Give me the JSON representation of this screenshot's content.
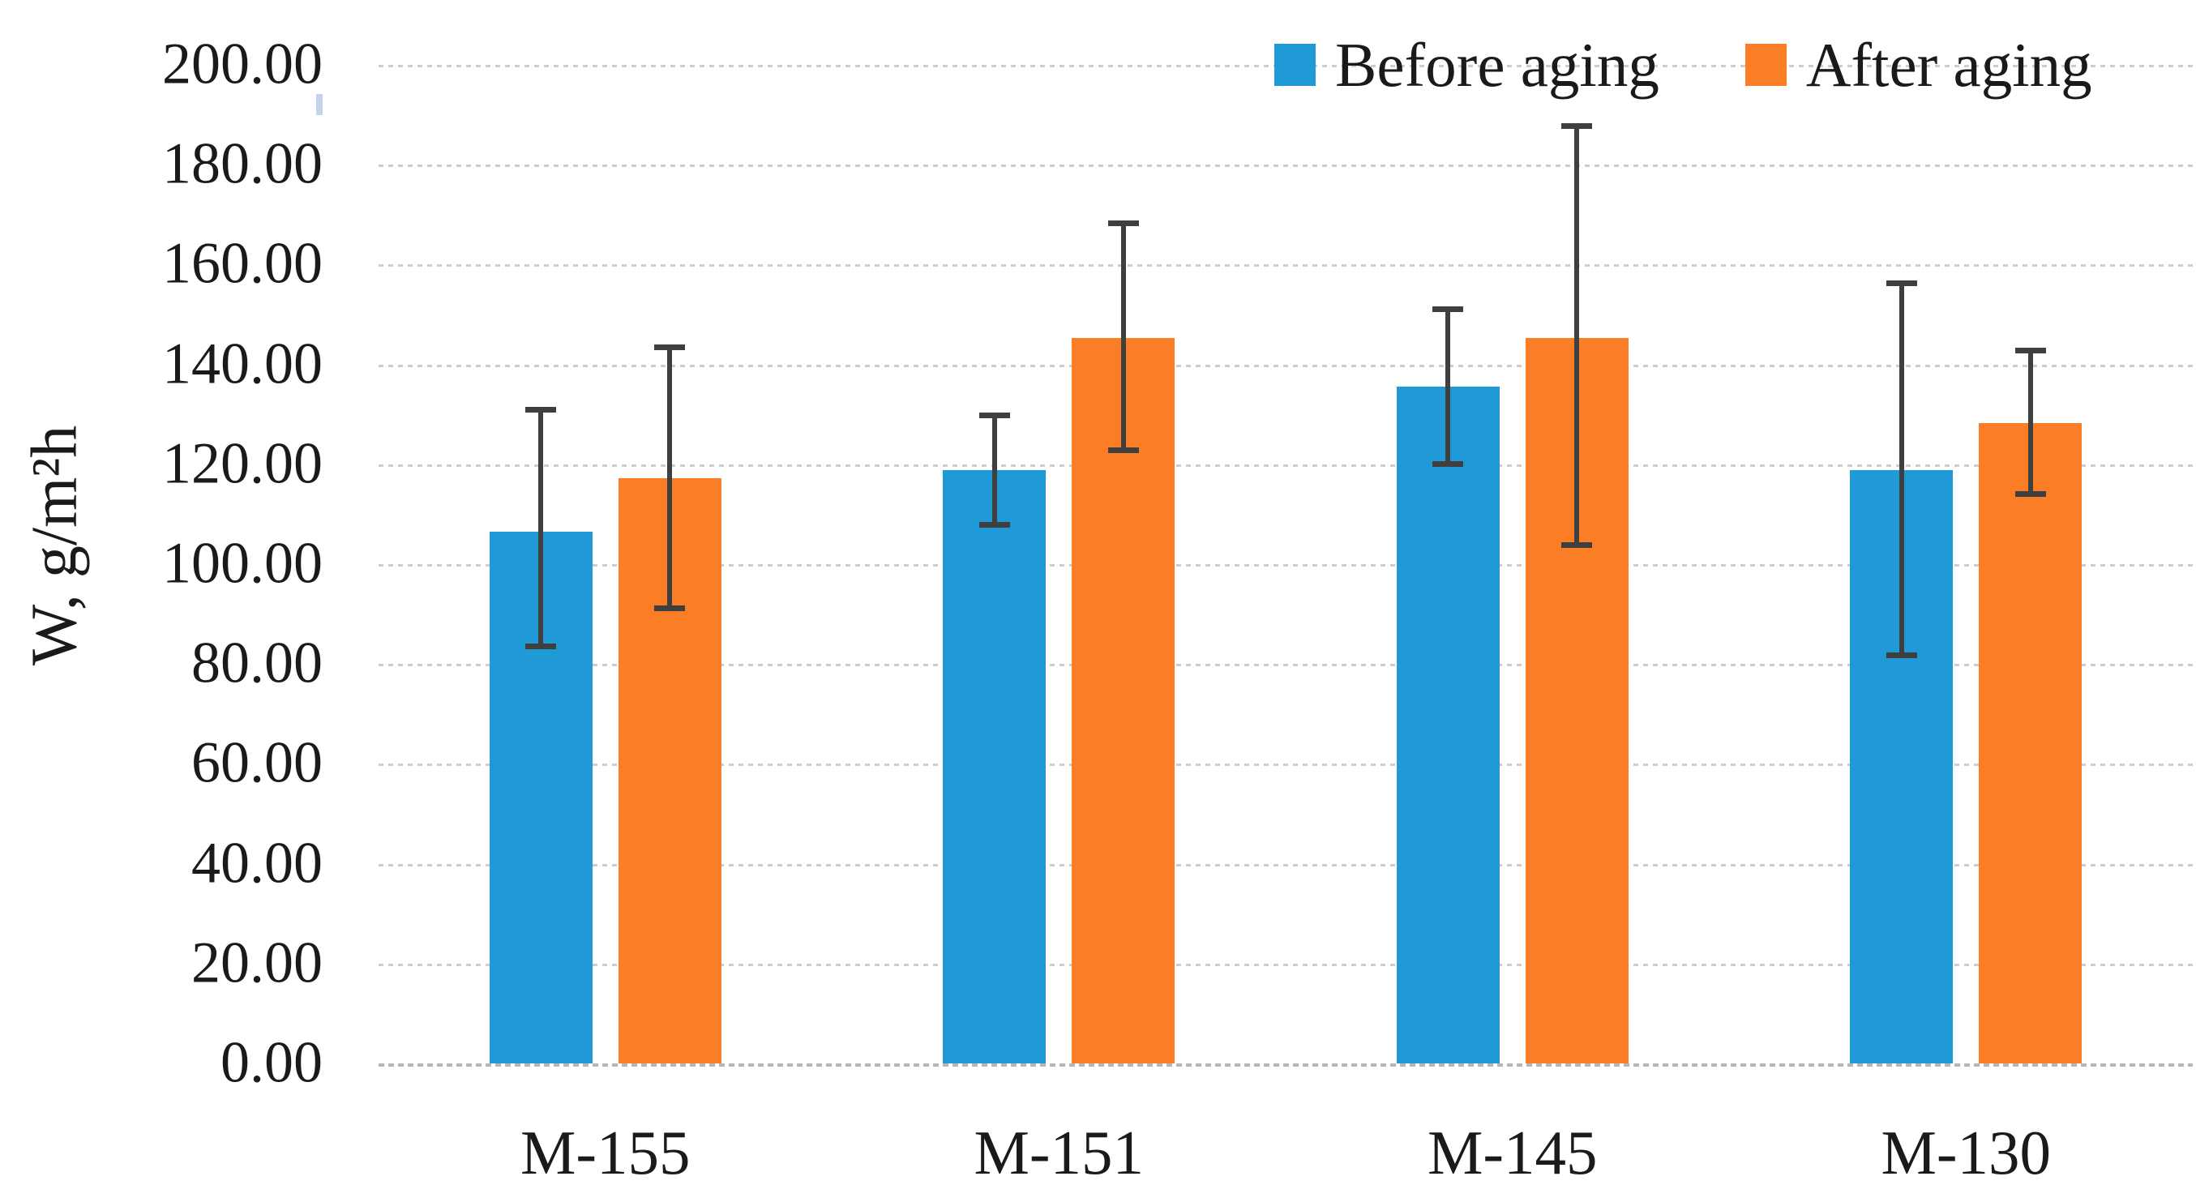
{
  "chart_data": {
    "type": "bar",
    "title": "",
    "categories": [
      "M-155",
      "M-151",
      "M-145",
      "M-130"
    ],
    "series": [
      {
        "name": "Before aging",
        "color": "#1F9AD7",
        "values": [
          106.5,
          118.8,
          135.5,
          118.8
        ],
        "error_minus": [
          23.0,
          11.0,
          15.5,
          37.0
        ],
        "error_plus": [
          24.5,
          11.0,
          15.5,
          37.5
        ]
      },
      {
        "name": "After aging",
        "color": "#FB7D25",
        "values": [
          117.2,
          145.3,
          145.3,
          128.3
        ],
        "error_minus": [
          26.0,
          22.5,
          41.5,
          14.2
        ],
        "error_plus": [
          26.3,
          23.0,
          42.5,
          14.5
        ]
      }
    ],
    "xlabel": "",
    "ylabel": "W, g/m²h",
    "ylim": [
      0,
      200
    ],
    "ytick_step": 20,
    "ytick_labels": [
      "0.00",
      "20.00",
      "40.00",
      "60.00",
      "80.00",
      "100.00",
      "120.00",
      "140.00",
      "160.00",
      "180.00",
      "200.00"
    ],
    "grid": true,
    "legend_position": "top-right",
    "colors": {
      "grid": "#CDCDCD",
      "axis_line": "#B7B7B7",
      "error_bar": "#3F3F3F",
      "background": "#FFFFFF"
    }
  }
}
